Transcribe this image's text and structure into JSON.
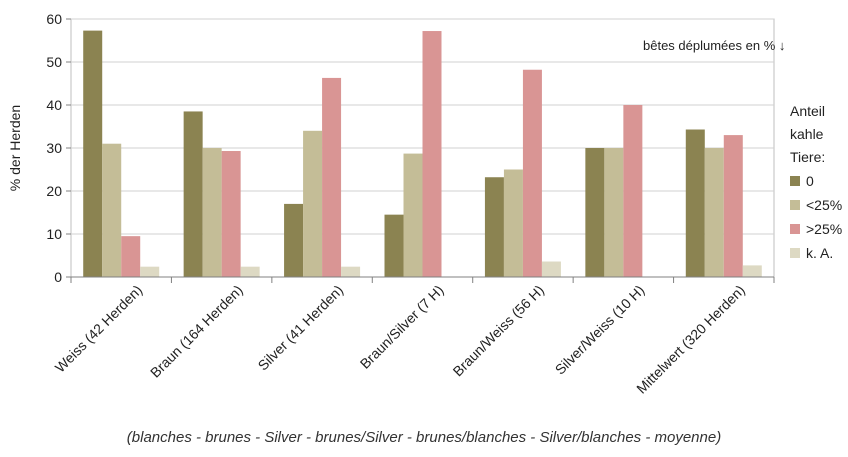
{
  "chart_data": {
    "type": "bar",
    "ylabel": "% der Herden",
    "ylim": [
      0,
      60
    ],
    "yticks": [
      0,
      10,
      20,
      30,
      40,
      50,
      60
    ],
    "grid": true,
    "categories": [
      "Weiss (42 Herden)",
      "Braun (164 Herden)",
      "Silver (41 Herden)",
      "Braun/Silver (7 H)",
      "Braun/Weiss (56 H)",
      "Silver/Weiss (10 H)",
      "Mittelwert (320 Herden)"
    ],
    "series": [
      {
        "name": "0",
        "color": "#8b8351",
        "values": [
          57.3,
          38.5,
          17,
          14.5,
          23.2,
          30,
          34.3
        ]
      },
      {
        "name": "<25%",
        "color": "#c4bd97",
        "values": [
          31,
          30,
          34,
          28.7,
          25,
          30,
          30
        ]
      },
      {
        "name": ">25%",
        "color": "#d99594",
        "values": [
          9.5,
          29.3,
          46.3,
          57.2,
          48.2,
          40,
          33
        ]
      },
      {
        "name": "k. A.",
        "color": "#ddd9c3",
        "values": [
          2.4,
          2.4,
          2.4,
          0,
          3.6,
          0,
          2.7
        ]
      }
    ],
    "legend": {
      "position": "right",
      "title_lines": [
        "Anteil",
        "kahle",
        "Tiere:"
      ]
    },
    "annotation": "bêtes déplumées en %  ↓",
    "footnote": "(blanches - brunes - Silver - brunes/Silver - brunes/blanches - Silver/blanches - moyenne)"
  }
}
